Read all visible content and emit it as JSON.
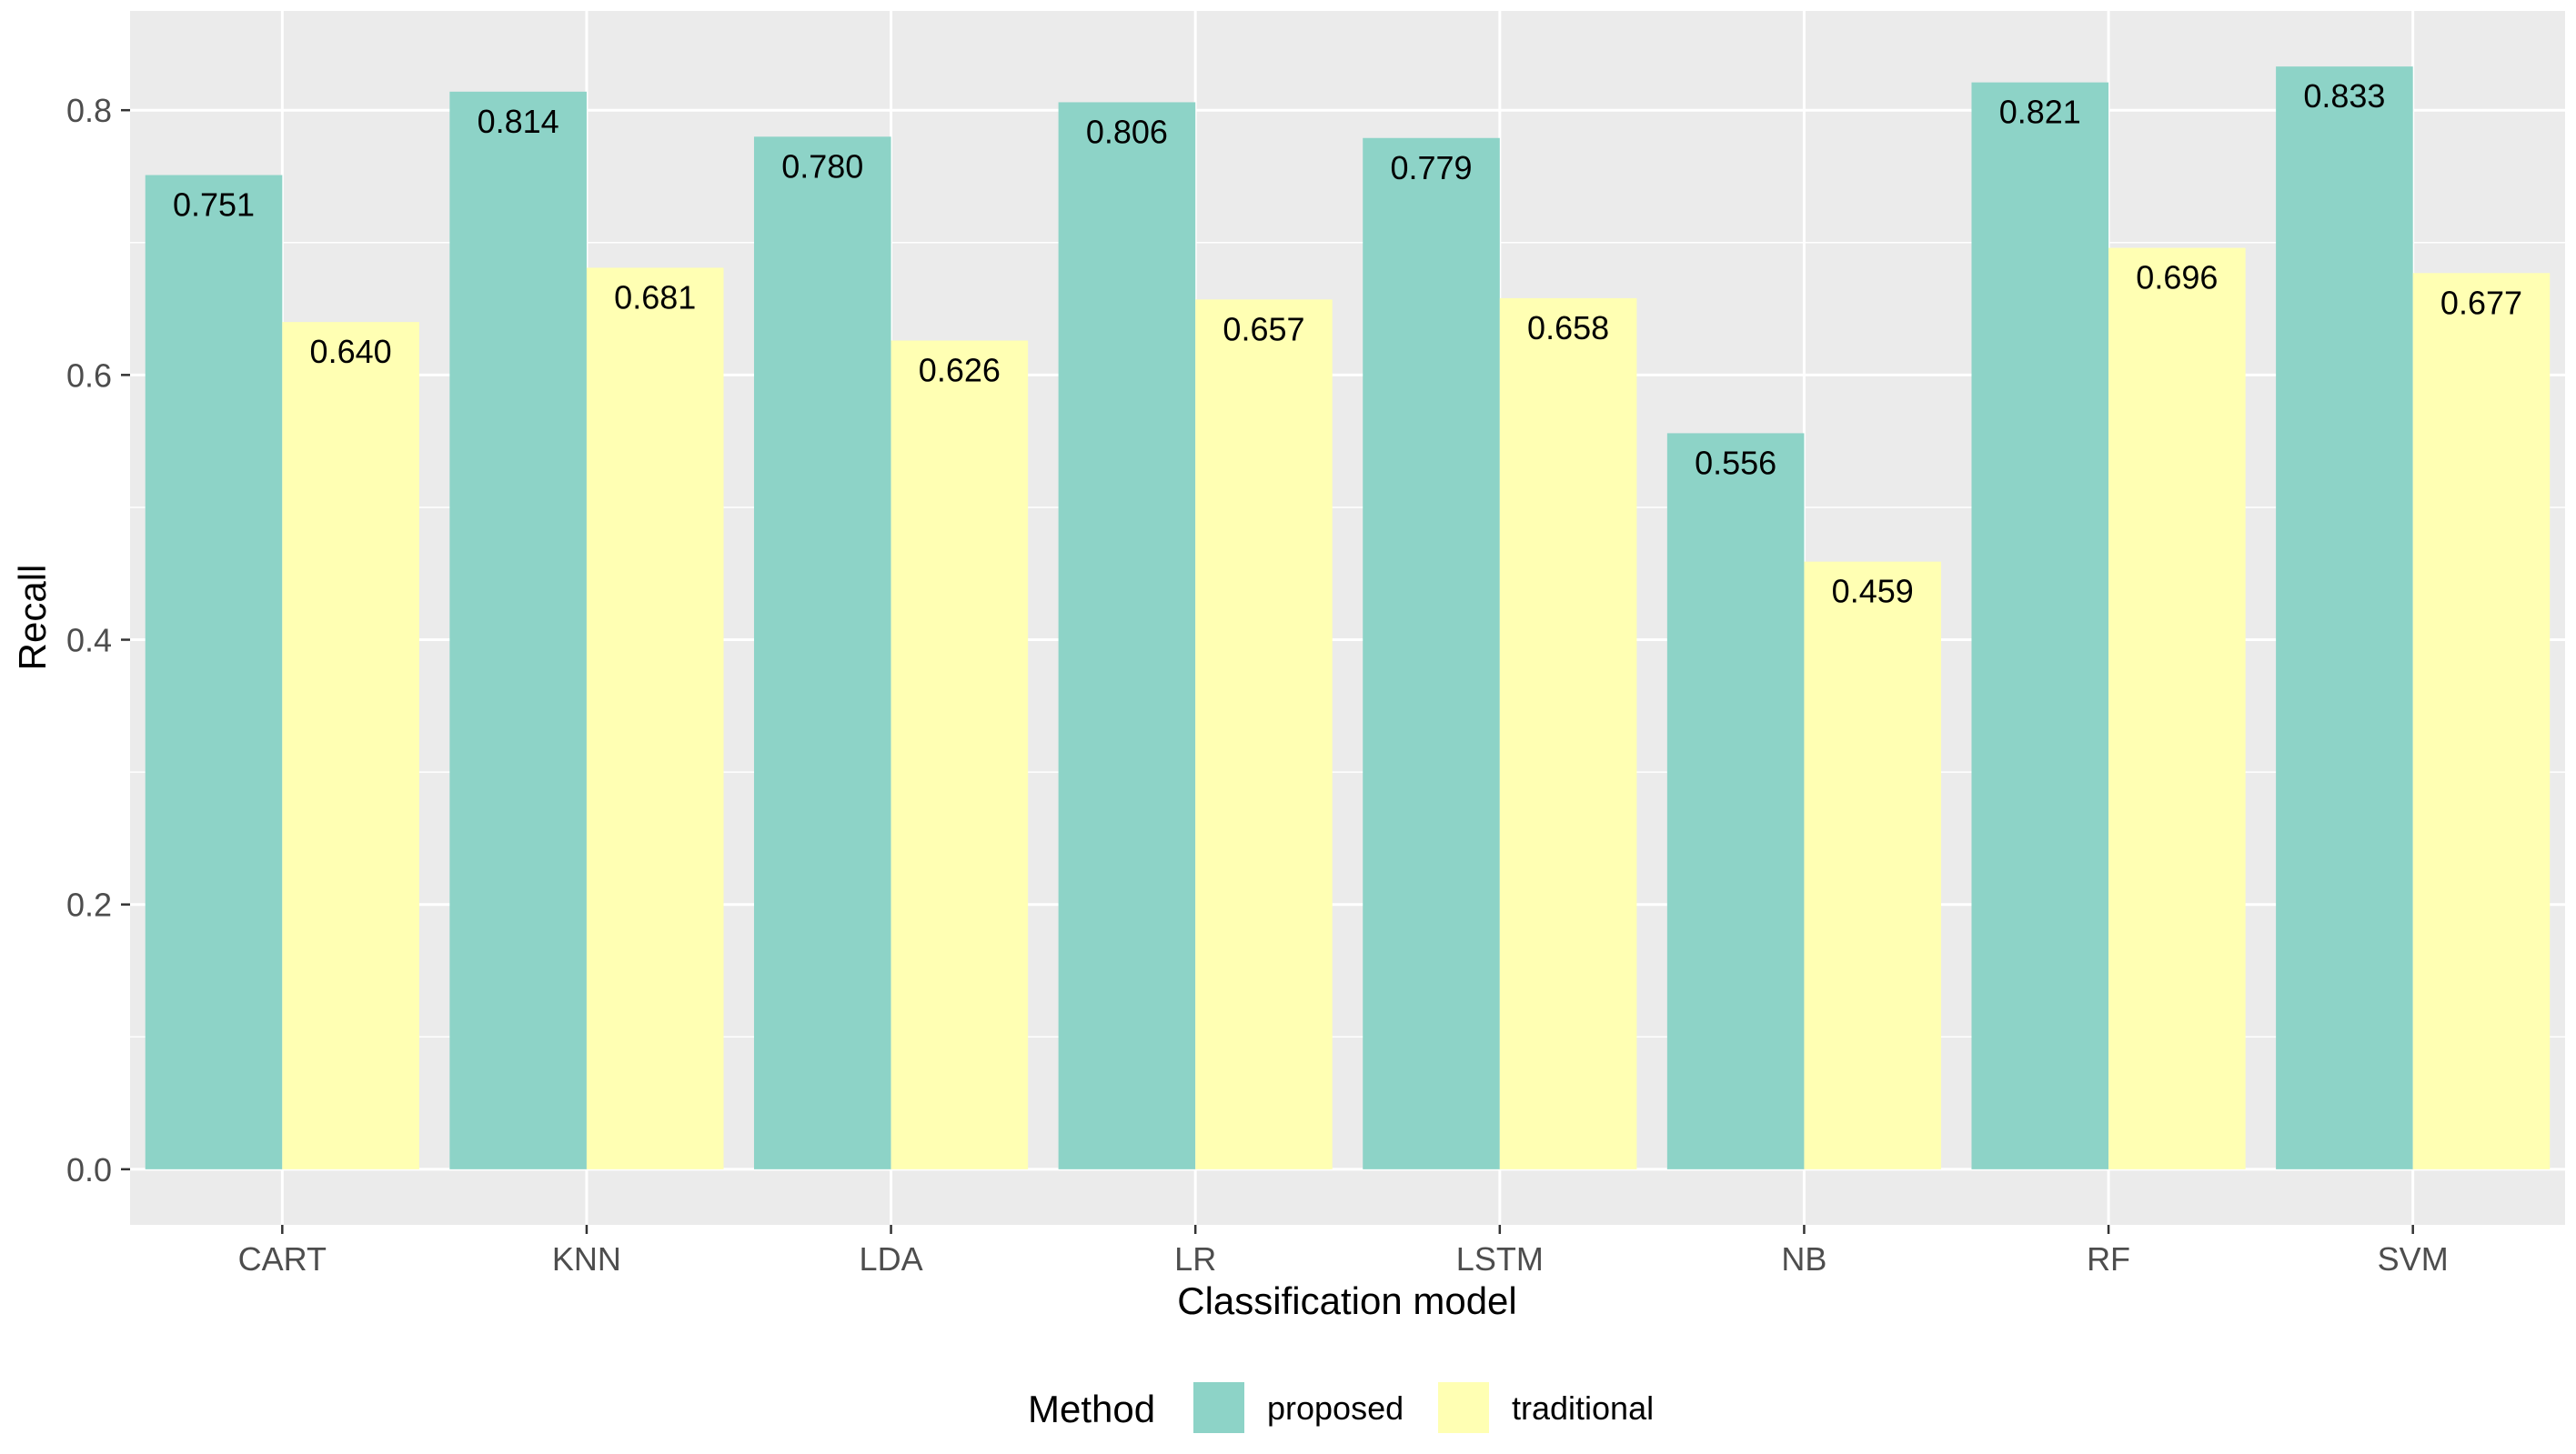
{
  "chart_data": {
    "type": "bar",
    "title": "",
    "xlabel": "Classification model",
    "ylabel": "Recall",
    "categories": [
      "CART",
      "KNN",
      "LDA",
      "LR",
      "LSTM",
      "NB",
      "RF",
      "SVM"
    ],
    "series": [
      {
        "name": "proposed",
        "color": "#8dd3c7",
        "values": [
          0.751,
          0.814,
          0.78,
          0.806,
          0.779,
          0.556,
          0.821,
          0.833
        ],
        "labels": [
          "0.751",
          "0.814",
          "0.780",
          "0.806",
          "0.779",
          "0.556",
          "0.821",
          "0.833"
        ]
      },
      {
        "name": "traditional",
        "color": "#ffffb3",
        "values": [
          0.64,
          0.681,
          0.626,
          0.657,
          0.658,
          0.459,
          0.696,
          0.677
        ],
        "labels": [
          "0.640",
          "0.681",
          "0.626",
          "0.657",
          "0.658",
          "0.459",
          "0.696",
          "0.677"
        ]
      }
    ],
    "yticks": [
      0.0,
      0.2,
      0.4,
      0.6,
      0.8
    ],
    "ytick_labels": [
      "0.0",
      "0.2",
      "0.4",
      "0.6",
      "0.8"
    ],
    "ylim": [
      -0.042,
      0.875
    ],
    "grid": true,
    "legend": {
      "title": "Method",
      "position": "bottom",
      "labels": [
        "proposed",
        "traditional"
      ]
    }
  },
  "colors": {
    "panel_background": "#ebebeb",
    "grid_line": "#ffffff",
    "proposed": "#8dd3c7",
    "traditional": "#ffffb3"
  }
}
